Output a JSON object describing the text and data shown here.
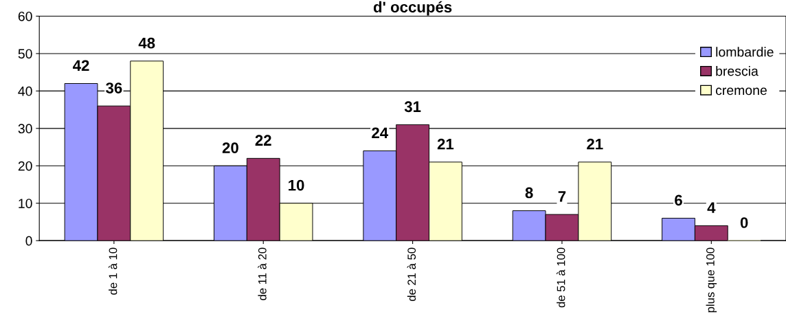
{
  "chart_data": {
    "type": "bar",
    "title": "d' occupés",
    "categories": [
      "de 1 à 10",
      "de 11 à 20",
      "de 21 à 50",
      "de 51 à 100",
      "plus que 100"
    ],
    "series": [
      {
        "name": "lombardie",
        "color": "#9999ff",
        "values": [
          42,
          20,
          24,
          8,
          6
        ]
      },
      {
        "name": "brescia",
        "color": "#993366",
        "values": [
          36,
          22,
          31,
          7,
          4
        ]
      },
      {
        "name": "cremone",
        "color": "#ffffcc",
        "values": [
          48,
          10,
          21,
          21,
          0
        ]
      }
    ],
    "ylim": [
      0,
      60
    ],
    "yticks": [
      0,
      10,
      20,
      30,
      40,
      50,
      60
    ],
    "grid": "y",
    "legend": "right",
    "data_labels": true
  }
}
